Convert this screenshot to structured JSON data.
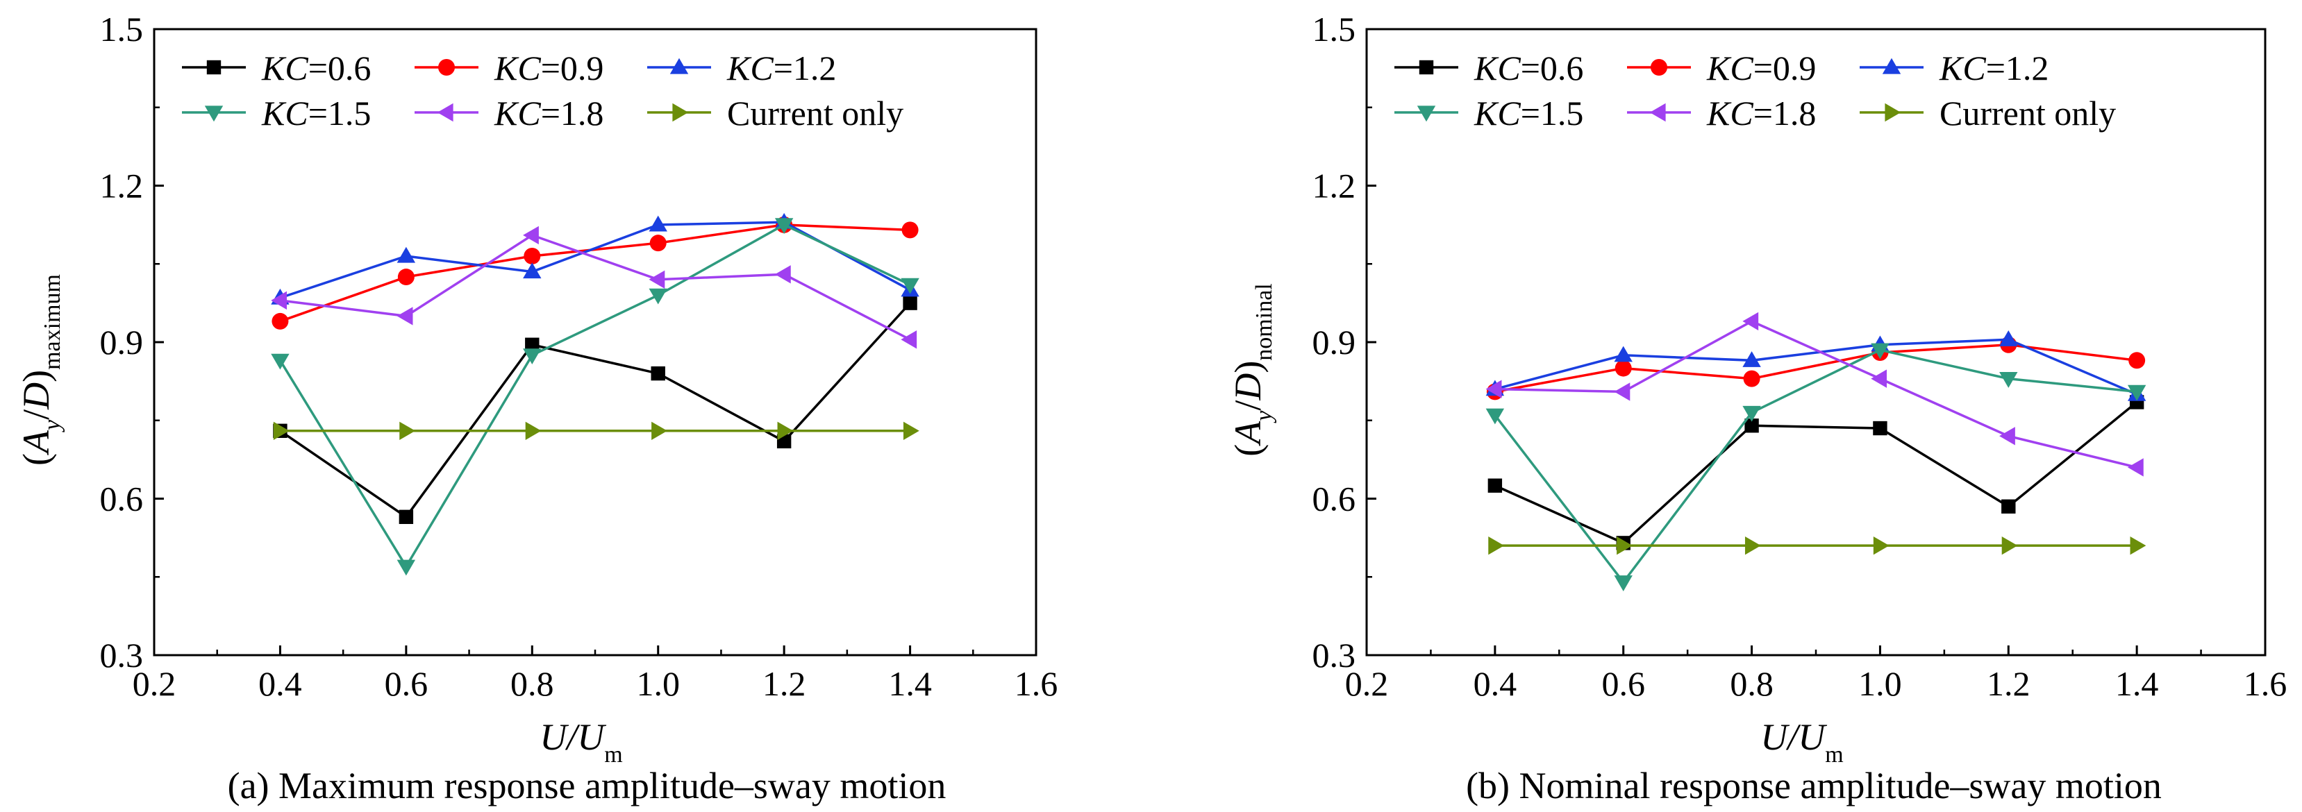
{
  "chart_data": [
    {
      "type": "line",
      "caption": "(a) Maximum response amplitude–sway motion",
      "xlabel": {
        "main": "U/U",
        "sub": "m"
      },
      "ylabel": {
        "main": "(A",
        "sub1": "y",
        "mid": "/D)",
        "sub2": "maximum"
      },
      "xlim": [
        0.2,
        1.6
      ],
      "ylim": [
        0.3,
        1.5
      ],
      "xticks": [
        "0.2",
        "0.4",
        "0.6",
        "0.8",
        "1.0",
        "1.2",
        "1.4",
        "1.6"
      ],
      "yticks": [
        "0.3",
        "0.6",
        "0.9",
        "1.2",
        "1.5"
      ],
      "x": [
        0.4,
        0.6,
        0.8,
        1.0,
        1.2,
        1.4
      ],
      "grid": false,
      "legend_position": "top",
      "series": [
        {
          "name": "KC=0.6",
          "color": "#000000",
          "marker": "square",
          "values": [
            0.73,
            0.565,
            0.895,
            0.84,
            0.71,
            0.975
          ]
        },
        {
          "name": "KC=0.9",
          "color": "#ff0000",
          "marker": "circle",
          "values": [
            0.94,
            1.025,
            1.065,
            1.09,
            1.125,
            1.115
          ]
        },
        {
          "name": "KC=1.2",
          "color": "#1a3fe0",
          "marker": "triangle-up",
          "values": [
            0.985,
            1.065,
            1.035,
            1.125,
            1.13,
            1.0
          ]
        },
        {
          "name": "KC=1.5",
          "color": "#2e9a7e",
          "marker": "triangle-down",
          "values": [
            0.865,
            0.47,
            0.875,
            0.99,
            1.125,
            1.01
          ]
        },
        {
          "name": "KC=1.8",
          "color": "#a040f0",
          "marker": "triangle-left",
          "values": [
            0.98,
            0.95,
            1.105,
            1.02,
            1.03,
            0.905
          ]
        },
        {
          "name": "Current only",
          "color": "#6b8e0a",
          "marker": "triangle-right",
          "values": [
            0.73,
            0.73,
            0.73,
            0.73,
            0.73,
            0.73
          ]
        }
      ]
    },
    {
      "type": "line",
      "caption": "(b) Nominal response amplitude–sway motion",
      "xlabel": {
        "main": "U/U",
        "sub": "m"
      },
      "ylabel": {
        "main": "(A",
        "sub1": "y",
        "mid": "/D)",
        "sub2": "nominal"
      },
      "xlim": [
        0.2,
        1.6
      ],
      "ylim": [
        0.3,
        1.5
      ],
      "xticks": [
        "0.2",
        "0.4",
        "0.6",
        "0.8",
        "1.0",
        "1.2",
        "1.4",
        "1.6"
      ],
      "yticks": [
        "0.3",
        "0.6",
        "0.9",
        "1.2",
        "1.5"
      ],
      "x": [
        0.4,
        0.6,
        0.8,
        1.0,
        1.2,
        1.4
      ],
      "grid": false,
      "legend_position": "top",
      "series": [
        {
          "name": "KC=0.6",
          "color": "#000000",
          "marker": "square",
          "values": [
            0.625,
            0.515,
            0.74,
            0.735,
            0.585,
            0.785
          ]
        },
        {
          "name": "KC=0.9",
          "color": "#ff0000",
          "marker": "circle",
          "values": [
            0.805,
            0.85,
            0.83,
            0.88,
            0.895,
            0.865
          ]
        },
        {
          "name": "KC=1.2",
          "color": "#1a3fe0",
          "marker": "triangle-up",
          "values": [
            0.81,
            0.875,
            0.865,
            0.895,
            0.905,
            0.8
          ]
        },
        {
          "name": "KC=1.5",
          "color": "#2e9a7e",
          "marker": "triangle-down",
          "values": [
            0.76,
            0.44,
            0.765,
            0.885,
            0.83,
            0.805
          ]
        },
        {
          "name": "KC=1.8",
          "color": "#a040f0",
          "marker": "triangle-left",
          "values": [
            0.81,
            0.805,
            0.94,
            0.83,
            0.72,
            0.66
          ]
        },
        {
          "name": "Current only",
          "color": "#6b8e0a",
          "marker": "triangle-right",
          "values": [
            0.51,
            0.51,
            0.51,
            0.51,
            0.51,
            0.51
          ]
        }
      ]
    }
  ]
}
